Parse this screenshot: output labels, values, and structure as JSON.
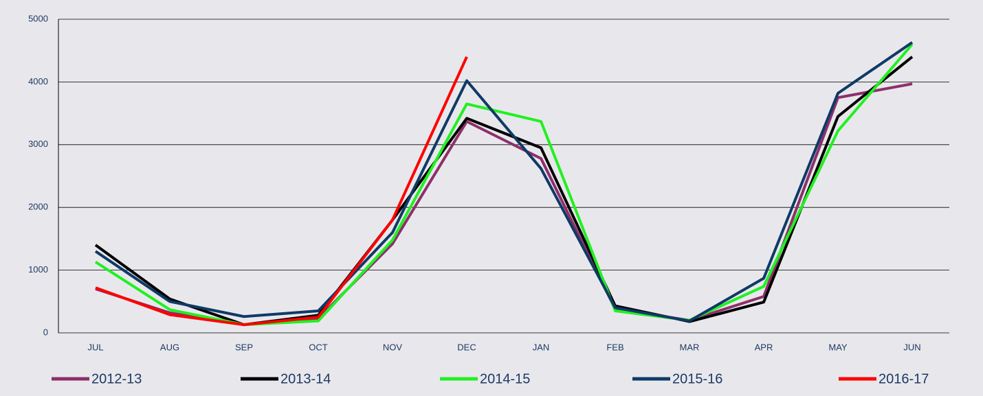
{
  "chart_data": {
    "type": "line",
    "categories": [
      "JUL",
      "AUG",
      "SEP",
      "OCT",
      "NOV",
      "DEC",
      "JAN",
      "FEB",
      "MAR",
      "APR",
      "MAY",
      "JUN"
    ],
    "series": [
      {
        "name": "2012-13",
        "color": "#8e2f6a",
        "values": [
          700,
          320,
          130,
          230,
          1420,
          3370,
          2780,
          380,
          200,
          580,
          3750,
          3970
        ]
      },
      {
        "name": "2013-14",
        "color": "#000000",
        "values": [
          1400,
          540,
          130,
          280,
          1800,
          3420,
          2950,
          430,
          180,
          490,
          3450,
          4400
        ]
      },
      {
        "name": "2014-15",
        "color": "#22f022",
        "values": [
          1130,
          370,
          130,
          190,
          1480,
          3650,
          3370,
          350,
          200,
          740,
          3220,
          4600
        ]
      },
      {
        "name": "2015-16",
        "color": "#0f3a66",
        "values": [
          1300,
          500,
          260,
          350,
          1600,
          4020,
          2620,
          400,
          190,
          870,
          3820,
          4630
        ]
      },
      {
        "name": "2016-17",
        "color": "#ff0000",
        "values": [
          720,
          290,
          130,
          250,
          1800,
          4400,
          null,
          null,
          null,
          null,
          null,
          null
        ]
      }
    ],
    "ylim": [
      0,
      5000
    ],
    "yticks": [
      0,
      1000,
      2000,
      3000,
      4000,
      5000
    ],
    "grid": true
  }
}
